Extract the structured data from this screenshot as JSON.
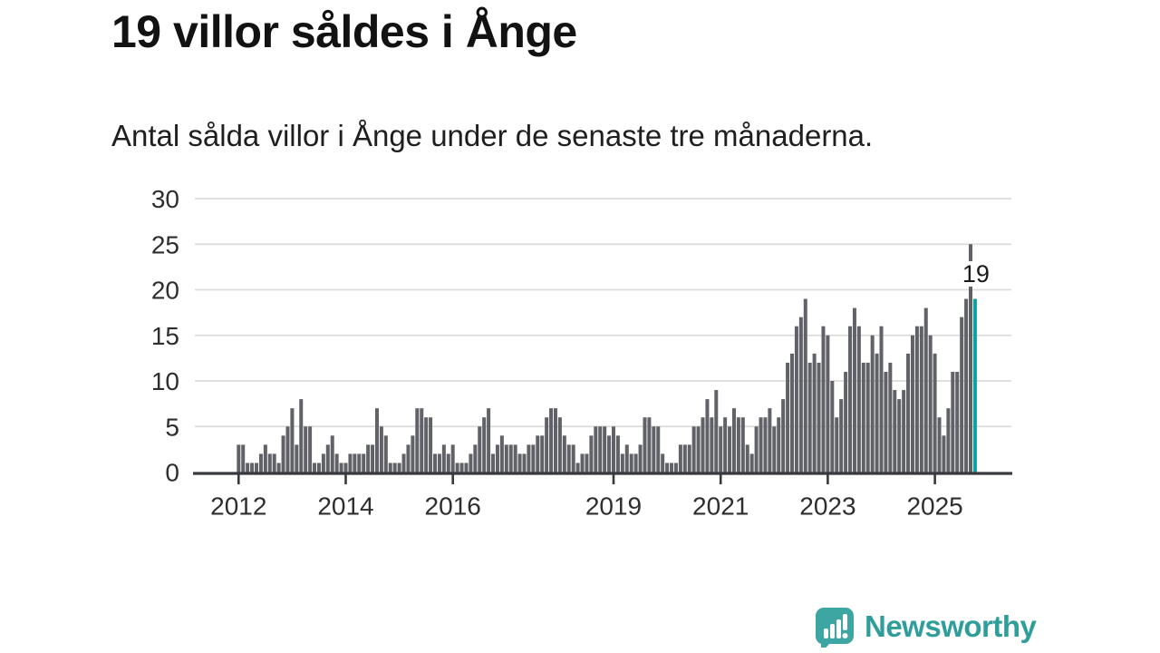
{
  "header": {
    "title": "19 villor såldes i Ånge",
    "subtitle": "Antal sålda villor i Ånge under de senaste tre månaderna."
  },
  "colors": {
    "bar": "#616267",
    "highlight": "#0aa29d",
    "grid": "#dcdcdc",
    "axis": "#38393e",
    "axis_text": "#2e2e2e",
    "annotation_text": "#1a1a1a",
    "brand_teal": "#2f9e9b",
    "brand_bubble": "#3ea6a2"
  },
  "chart_data": {
    "type": "bar",
    "title": "19 villor såldes i Ånge",
    "subtitle": "Antal sålda villor i Ånge under de senaste tre månaderna.",
    "x_unit": "month",
    "x_start": "2012-01",
    "x_end": "2025-10",
    "values": [
      3,
      3,
      1,
      1,
      1,
      2,
      3,
      2,
      2,
      1,
      4,
      5,
      7,
      3,
      8,
      5,
      5,
      1,
      1,
      2,
      3,
      4,
      2,
      1,
      1,
      2,
      2,
      2,
      2,
      3,
      3,
      7,
      5,
      4,
      1,
      1,
      1,
      2,
      3,
      4,
      7,
      7,
      6,
      6,
      2,
      2,
      3,
      2,
      3,
      1,
      1,
      1,
      2,
      3,
      5,
      6,
      7,
      2,
      3,
      4,
      3,
      3,
      3,
      2,
      2,
      3,
      3,
      4,
      4,
      6,
      7,
      7,
      6,
      4,
      3,
      3,
      1,
      2,
      2,
      4,
      5,
      5,
      5,
      4,
      5,
      4,
      2,
      3,
      2,
      2,
      3,
      6,
      6,
      5,
      5,
      2,
      1,
      1,
      1,
      3,
      3,
      3,
      5,
      5,
      6,
      8,
      6,
      9,
      5,
      6,
      5,
      7,
      6,
      6,
      3,
      2,
      5,
      6,
      6,
      7,
      5,
      6,
      8,
      12,
      13,
      16,
      17,
      19,
      12,
      13,
      12,
      16,
      15,
      10,
      6,
      8,
      11,
      16,
      18,
      16,
      12,
      12,
      15,
      13,
      16,
      11,
      12,
      9,
      8,
      9,
      13,
      15,
      16,
      16,
      18,
      15,
      13,
      6,
      4,
      7,
      11,
      11,
      17,
      19,
      25,
      19
    ],
    "highlight_last_bar": true,
    "annotation": {
      "text": "19",
      "bar_index": 165
    },
    "y_ticks": [
      0,
      5,
      10,
      15,
      20,
      25,
      30
    ],
    "ylim": [
      0,
      30
    ],
    "x_tick_labels": [
      "2012",
      "2014",
      "2016",
      "2019",
      "2021",
      "2023",
      "2025"
    ],
    "x_tick_month_indices": [
      0,
      24,
      48,
      84,
      108,
      132,
      156
    ],
    "grid": "horizontal",
    "legend": "none"
  },
  "footer": {
    "brand": "Newsworthy",
    "logo_icon": "speech-bubble-bar-chart-icon"
  }
}
